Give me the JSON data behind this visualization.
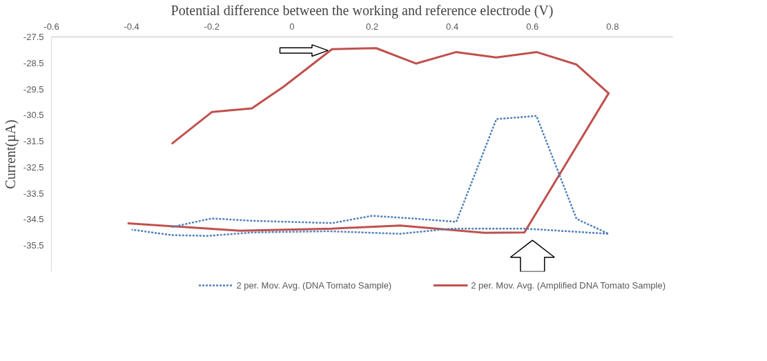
{
  "chart_data": {
    "type": "line",
    "xlabel": "Potential difference between the working and reference electrode (V)",
    "ylabel": "Current(µA)",
    "xlim": [
      -0.6,
      0.95
    ],
    "xticks": [
      -0.6,
      -0.4,
      -0.2,
      0,
      0.2,
      0.4,
      0.6,
      0.8
    ],
    "ylim": [
      -36.5,
      -27.5
    ],
    "yticks": [
      -27.5,
      -28.5,
      -29.5,
      -30.5,
      -31.5,
      -32.5,
      -33.5,
      -34.5,
      -35.5
    ],
    "grid": false,
    "legend": "bottom",
    "marker": "none",
    "series": [
      {
        "name": "2 per. Mov. Avg. (DNA Tomato Sample)",
        "color": "#4f81bd",
        "line_style": "dotted",
        "x": [
          -0.3,
          -0.2,
          -0.1,
          0.1,
          0.2,
          0.3,
          0.41,
          0.51,
          0.61,
          0.71,
          0.79,
          0.58,
          0.4,
          0.27,
          0.09,
          -0.1,
          -0.21,
          -0.3,
          -0.4
        ],
        "values": [
          -34.79,
          -34.46,
          -34.55,
          -34.64,
          -34.36,
          -34.46,
          -34.59,
          -30.65,
          -30.53,
          -34.48,
          -35.05,
          -34.85,
          -34.85,
          -35.05,
          -34.95,
          -35.0,
          -35.13,
          -35.1,
          -34.89
        ]
      },
      {
        "name": "2 per. Mov. Avg. (Amplified DNA Tomato Sample)",
        "color": "#c0504d",
        "line_style": "solid",
        "x": [
          -0.3,
          -0.2,
          -0.1,
          -0.02,
          0.1,
          0.21,
          0.31,
          0.41,
          0.51,
          0.61,
          0.71,
          0.79,
          0.58,
          0.48,
          0.27,
          0.1,
          -0.13,
          -0.41
        ],
        "values": [
          -31.6,
          -30.38,
          -30.24,
          -29.4,
          -27.97,
          -27.93,
          -28.52,
          -28.08,
          -28.29,
          -28.08,
          -28.56,
          -29.66,
          -35.0,
          -35.01,
          -34.73,
          -34.85,
          -34.93,
          -34.65
        ]
      }
    ]
  }
}
